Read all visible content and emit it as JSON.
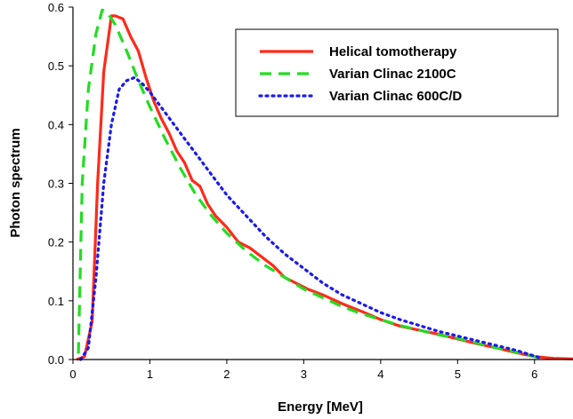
{
  "chart_data": {
    "type": "line",
    "xlabel": "Energy [MeV]",
    "ylabel": "Photon spectrum",
    "xlim": [
      0,
      6.5
    ],
    "ylim": [
      0,
      0.6
    ],
    "xticks": [
      "0",
      "1",
      "2",
      "3",
      "4",
      "5",
      "6"
    ],
    "yticks": [
      "0.0",
      "0.1",
      "0.2",
      "0.3",
      "0.4",
      "0.5",
      "0.6"
    ],
    "grid": false,
    "legend_position": "top-right",
    "series": [
      {
        "name": "Helical tomotherapy",
        "color": "#ff2a1a",
        "style": "solid",
        "x": [
          0.05,
          0.15,
          0.25,
          0.32,
          0.4,
          0.5,
          0.55,
          0.65,
          0.75,
          0.85,
          0.95,
          1.05,
          1.15,
          1.25,
          1.35,
          1.45,
          1.55,
          1.65,
          1.75,
          1.85,
          2.0,
          2.15,
          2.3,
          2.45,
          2.6,
          2.75,
          2.9,
          3.05,
          3.25,
          3.5,
          3.75,
          4.0,
          4.25,
          4.5,
          4.75,
          5.0,
          5.25,
          5.5,
          5.75,
          6.0,
          6.25,
          6.5
        ],
        "values": [
          0.0,
          0.005,
          0.065,
          0.3,
          0.49,
          0.585,
          0.585,
          0.58,
          0.55,
          0.525,
          0.48,
          0.44,
          0.41,
          0.385,
          0.355,
          0.335,
          0.305,
          0.295,
          0.265,
          0.245,
          0.225,
          0.2,
          0.19,
          0.175,
          0.16,
          0.14,
          0.13,
          0.12,
          0.11,
          0.095,
          0.082,
          0.068,
          0.057,
          0.05,
          0.043,
          0.035,
          0.027,
          0.02,
          0.012,
          0.005,
          0.002,
          0.001
        ]
      },
      {
        "name": "Varian Clinac 2100C",
        "color": "#22dd22",
        "style": "dashed",
        "x": [
          0.07,
          0.12,
          0.2,
          0.3,
          0.38,
          0.45,
          0.55,
          0.7,
          0.85,
          1.0,
          1.2,
          1.4,
          1.6,
          1.8,
          2.0,
          2.25,
          2.5,
          2.75,
          3.0,
          3.25,
          3.5,
          3.75,
          4.0,
          4.25,
          4.5,
          4.75,
          5.0,
          5.25,
          5.5,
          5.75,
          6.0,
          6.1
        ],
        "values": [
          0.01,
          0.3,
          0.46,
          0.555,
          0.595,
          0.59,
          0.57,
          0.525,
          0.475,
          0.43,
          0.375,
          0.325,
          0.28,
          0.245,
          0.215,
          0.185,
          0.16,
          0.14,
          0.12,
          0.105,
          0.09,
          0.078,
          0.068,
          0.058,
          0.05,
          0.042,
          0.036,
          0.028,
          0.02,
          0.013,
          0.005,
          0.002
        ]
      },
      {
        "name": "Varian Clinac 600C/D",
        "color": "#1a1aee",
        "style": "dotted",
        "x": [
          0.1,
          0.2,
          0.3,
          0.4,
          0.5,
          0.6,
          0.7,
          0.8,
          0.9,
          1.0,
          1.2,
          1.4,
          1.6,
          1.8,
          2.0,
          2.25,
          2.5,
          2.75,
          3.0,
          3.25,
          3.5,
          3.75,
          4.0,
          4.25,
          4.5,
          4.75,
          5.0,
          5.25,
          5.5,
          5.75,
          6.0,
          6.1
        ],
        "values": [
          0.0,
          0.02,
          0.14,
          0.3,
          0.4,
          0.46,
          0.475,
          0.48,
          0.47,
          0.455,
          0.42,
          0.385,
          0.35,
          0.315,
          0.28,
          0.245,
          0.21,
          0.18,
          0.155,
          0.13,
          0.11,
          0.095,
          0.08,
          0.068,
          0.058,
          0.048,
          0.04,
          0.032,
          0.024,
          0.016,
          0.006,
          0.002
        ]
      }
    ]
  }
}
